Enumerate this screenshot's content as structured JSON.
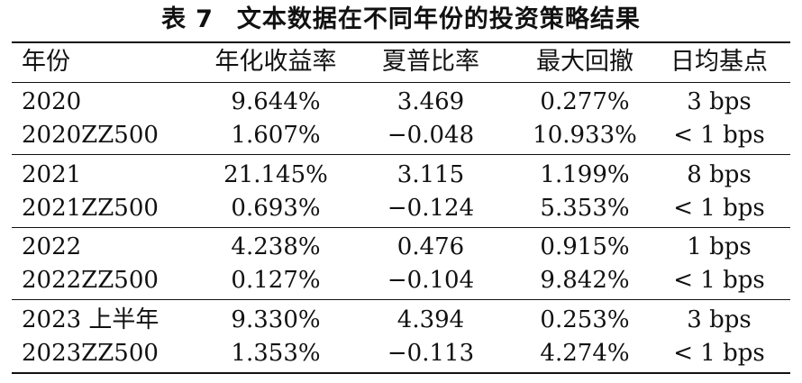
{
  "caption": {
    "label": "表",
    "number": "7",
    "text": "文本数据在不同年份的投资策略结果"
  },
  "table": {
    "headers": [
      "年份",
      "年化收益率",
      "夏普比率",
      "最大回撤",
      "日均基点"
    ],
    "groups": [
      {
        "rows": [
          [
            "2020",
            "9.644%",
            "3.469",
            "0.277%",
            "3 bps"
          ],
          [
            "2020ZZ500",
            "1.607%",
            "−0.048",
            "10.933%",
            "< 1 bps"
          ]
        ]
      },
      {
        "rows": [
          [
            "2021",
            "21.145%",
            "3.115",
            "1.199%",
            "8 bps"
          ],
          [
            "2021ZZ500",
            "0.693%",
            "−0.124",
            "5.353%",
            "< 1 bps"
          ]
        ]
      },
      {
        "rows": [
          [
            "2022",
            "4.238%",
            "0.476",
            "0.915%",
            "1 bps"
          ],
          [
            "2022ZZ500",
            "0.127%",
            "−0.104",
            "9.842%",
            "< 1 bps"
          ]
        ]
      },
      {
        "rows": [
          [
            "2023 上半年",
            "9.330%",
            "4.394",
            "0.253%",
            "3 bps"
          ],
          [
            "2023ZZ500",
            "1.353%",
            "−0.113",
            "4.274%",
            "< 1 bps"
          ]
        ]
      }
    ]
  }
}
